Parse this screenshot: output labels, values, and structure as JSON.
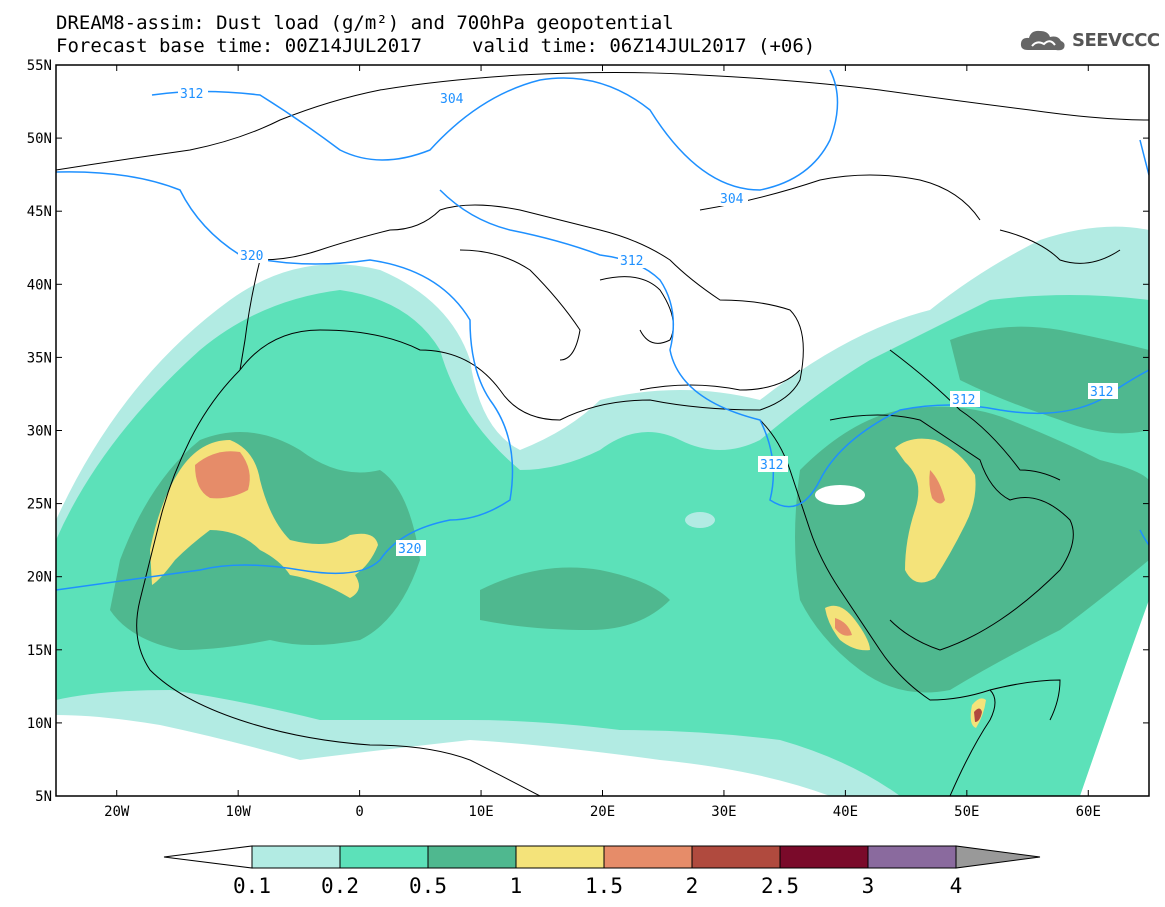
{
  "header": {
    "title_line1": "DREAM8-assim: Dust load (g/m²) and 700hPa geopotential",
    "forecast_label": "Forecast base time: 00Z14JUL2017",
    "valid_label": "valid time: 06Z14JUL2017 (+06)"
  },
  "logo": {
    "text": "SEEVCCC",
    "icon": "cloud-icon"
  },
  "map": {
    "lat_labels": [
      "55N",
      "50N",
      "45N",
      "40N",
      "35N",
      "30N",
      "25N",
      "20N",
      "15N",
      "10N",
      "5N"
    ],
    "lon_labels": [
      "20W",
      "10W",
      "0",
      "10E",
      "20E",
      "30E",
      "40E",
      "50E",
      "60E"
    ],
    "contour_labels": [
      "312",
      "304",
      "320",
      "312",
      "304",
      "312",
      "312",
      "312",
      "320"
    ],
    "contour_color": "#1e90ff"
  },
  "colorbar": {
    "ticks": [
      "0.1",
      "0.2",
      "0.5",
      "1",
      "1.5",
      "2",
      "2.5",
      "3",
      "4"
    ],
    "colors": [
      "#ffffff",
      "#b2ebe3",
      "#5ce1b9",
      "#4fb88f",
      "#f4e37a",
      "#e68c69",
      "#b04a3e",
      "#7a0a2a",
      "#8a6a9e",
      "#999999"
    ]
  }
}
